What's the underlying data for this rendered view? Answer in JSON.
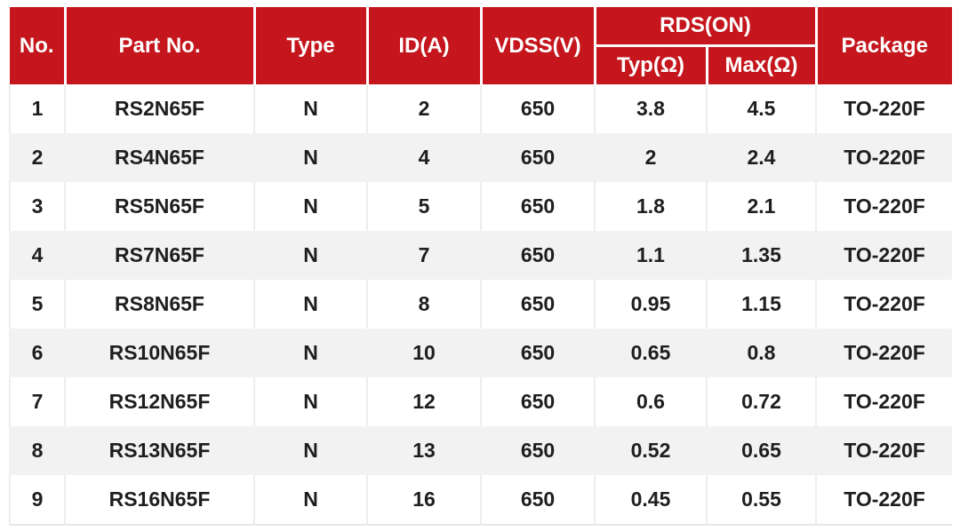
{
  "colors": {
    "header_bg": "#c4161c",
    "header_text": "#ffffff",
    "row_bg": "#ffffff",
    "row_alt_bg": "#f2f2f2",
    "body_text": "#1e1e1e"
  },
  "chart_data": {
    "type": "table",
    "title": "",
    "group_header": {
      "label": "RDS(ON)",
      "spans_columns": [
        "Typ(Ω)",
        "Max(Ω)"
      ]
    },
    "columns": [
      "No.",
      "Part No.",
      "Type",
      "ID(A)",
      "VDSS(V)",
      "Typ(Ω)",
      "Max(Ω)",
      "Package"
    ],
    "rows": [
      [
        "1",
        "RS2N65F",
        "N",
        "2",
        "650",
        "3.8",
        "4.5",
        "TO-220F"
      ],
      [
        "2",
        "RS4N65F",
        "N",
        "4",
        "650",
        "2",
        "2.4",
        "TO-220F"
      ],
      [
        "3",
        "RS5N65F",
        "N",
        "5",
        "650",
        "1.8",
        "2.1",
        "TO-220F"
      ],
      [
        "4",
        "RS7N65F",
        "N",
        "7",
        "650",
        "1.1",
        "1.35",
        "TO-220F"
      ],
      [
        "5",
        "RS8N65F",
        "N",
        "8",
        "650",
        "0.95",
        "1.15",
        "TO-220F"
      ],
      [
        "6",
        "RS10N65F",
        "N",
        "10",
        "650",
        "0.65",
        "0.8",
        "TO-220F"
      ],
      [
        "7",
        "RS12N65F",
        "N",
        "12",
        "650",
        "0.6",
        "0.72",
        "TO-220F"
      ],
      [
        "8",
        "RS13N65F",
        "N",
        "13",
        "650",
        "0.52",
        "0.65",
        "TO-220F"
      ],
      [
        "9",
        "RS16N65F",
        "N",
        "16",
        "650",
        "0.45",
        "0.55",
        "TO-220F"
      ]
    ]
  }
}
